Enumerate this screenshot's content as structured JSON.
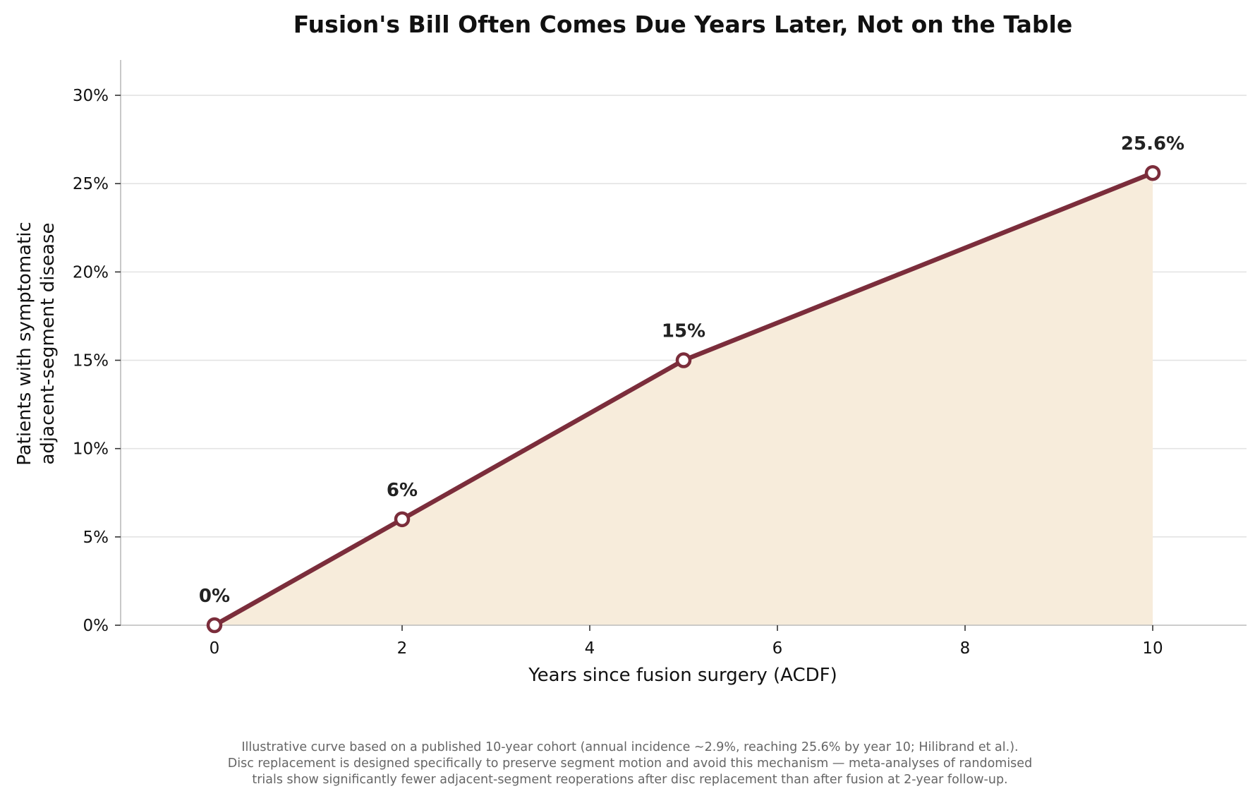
{
  "chart_data": {
    "type": "line",
    "title": "Fusion's Bill Often Comes Due Years Later, Not on the Table",
    "xlabel": "Years since fusion surgery (ACDF)",
    "ylabel_lines": [
      "Patients with symptomatic",
      "adjacent-segment disease"
    ],
    "x": [
      0,
      2,
      5,
      10
    ],
    "y": [
      0,
      6,
      15,
      25.6
    ],
    "point_labels": [
      "0%",
      "6%",
      "15%",
      "25.6%"
    ],
    "xlim": [
      -1,
      11
    ],
    "ylim": [
      0,
      32
    ],
    "x_ticks": [
      0,
      2,
      4,
      6,
      8,
      10
    ],
    "x_tick_labels": [
      "0",
      "2",
      "4",
      "6",
      "8",
      "10"
    ],
    "y_ticks": [
      0,
      5,
      10,
      15,
      20,
      25,
      30
    ],
    "y_tick_labels": [
      "0%",
      "5%",
      "10%",
      "15%",
      "20%",
      "25%",
      "30%"
    ],
    "grid": "horizontal",
    "line_color": "#7b2d3b",
    "fill_color": "#f7ecdb",
    "grid_color": "#e3e3e3",
    "axis_color": "#bbbbbb"
  },
  "footnote": [
    "Illustrative curve based on a published 10-year cohort (annual incidence ~2.9%, reaching 25.6% by year 10; Hilibrand et al.).",
    "Disc replacement is designed specifically to preserve segment motion and avoid this mechanism — meta-analyses of randomised",
    "trials show significantly fewer adjacent-segment reoperations after disc replacement than after fusion at 2-year follow-up."
  ]
}
